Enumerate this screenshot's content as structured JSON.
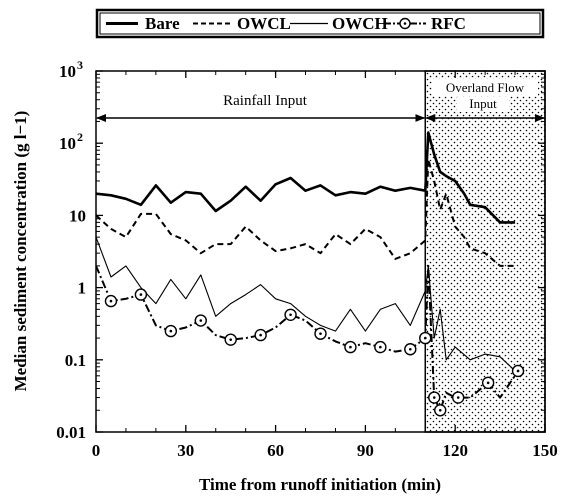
{
  "chart_data": {
    "type": "line",
    "xlabel": "Time from runoff initiation (min)",
    "ylabel": "Median sediment concentration (g l−1)",
    "xlim": [
      0,
      150
    ],
    "ylim": [
      0.01,
      1000
    ],
    "yscale": "log",
    "xticks": [
      "0",
      "30",
      "60",
      "90",
      "120",
      "150"
    ],
    "yticks": [
      {
        "label": "0.01",
        "value": 0.01
      },
      {
        "label": "0.1",
        "value": 0.1
      },
      {
        "label": "1",
        "value": 1
      },
      {
        "label": "10",
        "value": 10
      },
      {
        "label": "10",
        "value": 100,
        "exp": "2"
      },
      {
        "label": "10",
        "value": 1000,
        "exp": "3"
      }
    ],
    "legend": {
      "position": "top",
      "entries": [
        "Bare",
        "OWCL",
        "OWCH",
        "RFC"
      ]
    },
    "annotations": {
      "rainfall": "Rainfall Input",
      "overland_line1": "Overland Flow",
      "overland_line2": "Input",
      "overland_start": 110,
      "overland_end": 150
    },
    "series": [
      {
        "name": "Bare",
        "style": "thick-solid",
        "color": "#000000",
        "x": [
          0,
          5,
          10,
          15,
          20,
          25,
          30,
          35,
          40,
          45,
          50,
          55,
          60,
          65,
          70,
          75,
          80,
          85,
          90,
          95,
          100,
          105,
          110,
          111,
          113,
          115,
          117,
          120,
          123,
          125,
          130,
          135,
          140
        ],
        "y": [
          20,
          19,
          17,
          14,
          26,
          15,
          21,
          20,
          11.5,
          16,
          25,
          16,
          27,
          33,
          22,
          26,
          19,
          21,
          20,
          25,
          22,
          24,
          22,
          140,
          70,
          40,
          35,
          30,
          20,
          14,
          13,
          8,
          8
        ]
      },
      {
        "name": "OWCL",
        "style": "dashed",
        "color": "#000000",
        "x": [
          0,
          5,
          10,
          15,
          20,
          25,
          30,
          35,
          40,
          45,
          50,
          55,
          60,
          65,
          70,
          75,
          80,
          85,
          90,
          95,
          100,
          105,
          110,
          111,
          113,
          115,
          117,
          120,
          123,
          125,
          130,
          135,
          140
        ],
        "y": [
          10,
          6.5,
          5,
          10.5,
          10.5,
          5.5,
          4.5,
          3,
          4,
          4,
          7,
          4.5,
          3.2,
          3.5,
          4,
          3,
          5.5,
          4,
          6.5,
          5,
          2.5,
          3,
          4.5,
          60,
          30,
          12,
          20,
          7,
          5,
          3.5,
          3,
          2,
          2
        ]
      },
      {
        "name": "OWCH",
        "style": "thin-solid",
        "color": "#000000",
        "x": [
          0,
          5,
          10,
          15,
          20,
          25,
          30,
          35,
          40,
          45,
          50,
          55,
          60,
          65,
          70,
          75,
          80,
          85,
          90,
          95,
          100,
          105,
          110,
          111,
          113,
          115,
          117,
          120,
          125,
          130,
          135,
          140
        ],
        "y": [
          5,
          1.4,
          2,
          1,
          0.6,
          1.3,
          0.7,
          1.5,
          0.4,
          0.6,
          0.8,
          1.1,
          0.7,
          0.6,
          0.4,
          0.3,
          0.25,
          0.5,
          0.25,
          0.5,
          0.6,
          0.3,
          0.9,
          2,
          0.2,
          0.5,
          0.1,
          0.15,
          0.1,
          0.12,
          0.11,
          0.07
        ]
      },
      {
        "name": "RFC",
        "style": "dash-dot-markers",
        "color": "#000000",
        "x": [
          0,
          5,
          10,
          15,
          20,
          25,
          30,
          35,
          40,
          45,
          50,
          55,
          60,
          65,
          70,
          75,
          80,
          85,
          90,
          95,
          100,
          105,
          110,
          111,
          113,
          115,
          117,
          120,
          121,
          125,
          131,
          135,
          141
        ],
        "y": [
          2,
          0.65,
          0.7,
          0.8,
          0.3,
          0.25,
          0.28,
          0.35,
          0.22,
          0.19,
          0.2,
          0.22,
          0.28,
          0.42,
          0.35,
          0.23,
          0.18,
          0.15,
          0.17,
          0.15,
          0.13,
          0.14,
          0.2,
          2,
          0.03,
          0.02,
          0.035,
          0.03,
          0.03,
          0.03,
          0.048,
          0.03,
          0.07
        ],
        "markers": [
          5,
          15,
          25,
          35,
          45,
          55,
          65,
          75,
          85,
          95,
          105,
          110,
          113,
          115,
          121,
          131,
          141
        ]
      }
    ]
  }
}
